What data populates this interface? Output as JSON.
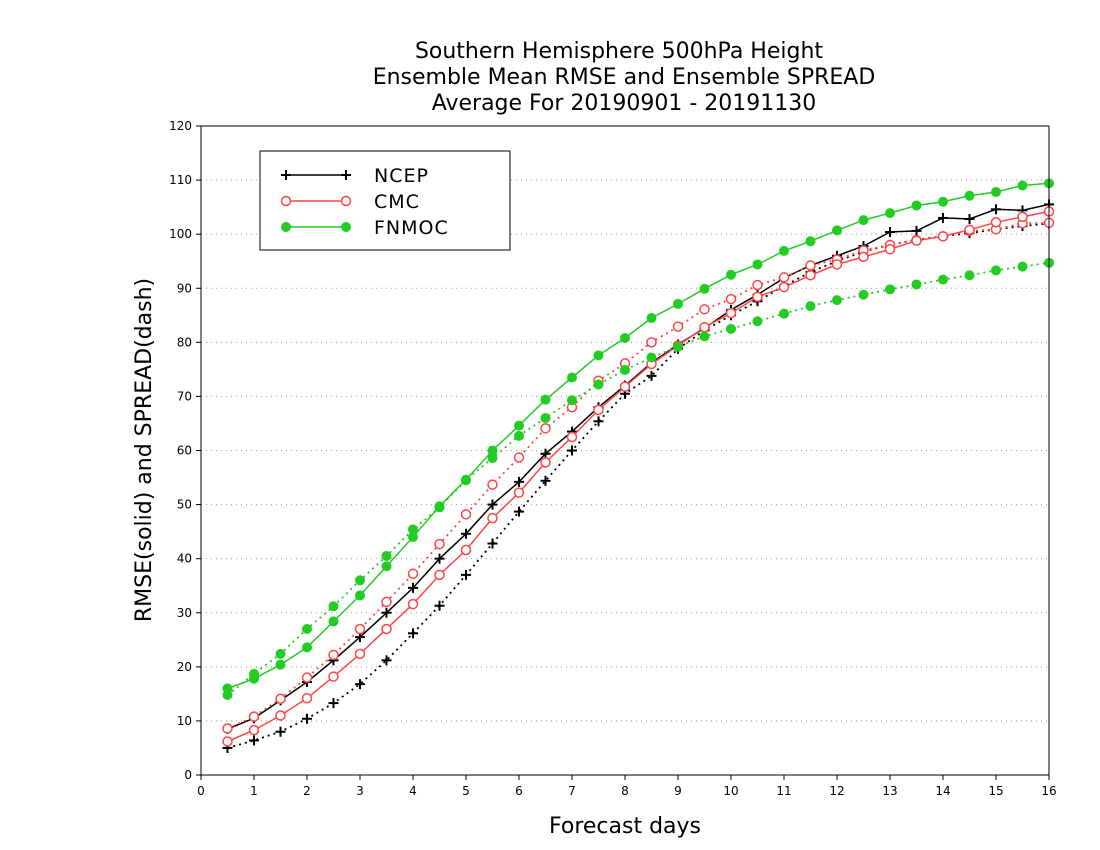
{
  "chart_data": {
    "type": "line",
    "title_lines": [
      "Southern Hemisphere 500hPa Height",
      "Ensemble Mean RMSE and Ensemble SPREAD",
      "Average For 20190901 - 20191130"
    ],
    "xlabel": "Forecast days",
    "ylabel": "RMSE(solid) and SPREAD(dash)",
    "xlim": [
      0,
      16
    ],
    "ylim": [
      0,
      120
    ],
    "xticks": [
      0,
      1,
      2,
      3,
      4,
      5,
      6,
      7,
      8,
      9,
      10,
      11,
      12,
      13,
      14,
      15,
      16
    ],
    "yticks": [
      0,
      10,
      20,
      30,
      40,
      50,
      60,
      70,
      80,
      90,
      100,
      110,
      120
    ],
    "grid": true,
    "legend_position": "top-left",
    "x": [
      0.5,
      1,
      1.5,
      2,
      2.5,
      3,
      3.5,
      4,
      4.5,
      5,
      5.5,
      6,
      6.5,
      7,
      7.5,
      8,
      8.5,
      9,
      9.5,
      10,
      10.5,
      11,
      11.5,
      12,
      12.5,
      13,
      13.5,
      14,
      14.5,
      15,
      15.5,
      16
    ],
    "series": [
      {
        "name": "NCEP",
        "color": "#000000",
        "marker": "plus",
        "rmse": [
          8.5,
          10.5,
          13.8,
          17.2,
          21.2,
          25.5,
          30,
          34.6,
          40,
          44.6,
          50,
          54.2,
          59.4,
          63.5,
          68,
          72,
          76.2,
          79.6,
          82.6,
          86,
          88.8,
          91.9,
          94.2,
          96,
          97.8,
          100.4,
          100.6,
          103,
          102.8,
          104.6,
          104.4,
          105.5
        ],
        "spread": [
          5,
          6.4,
          8,
          10.4,
          13.3,
          16.8,
          21.2,
          26.2,
          31.3,
          37,
          42.8,
          48.7,
          54.4,
          60,
          65.4,
          70.5,
          73.8,
          78.8,
          82.2,
          85,
          87.6,
          90.4,
          93,
          95,
          96.8,
          98,
          99,
          99.6,
          100.2,
          100.9,
          101.5,
          102
        ]
      },
      {
        "name": "CMC",
        "color": "#ff4444",
        "marker": "circle-open",
        "rmse": [
          6.2,
          8.3,
          11,
          14.2,
          18.2,
          22.4,
          27,
          31.6,
          37,
          41.6,
          47.5,
          52.2,
          57.8,
          62.5,
          67.5,
          71.8,
          76,
          79.4,
          82.8,
          85.4,
          88.4,
          90.2,
          92.4,
          94.4,
          95.8,
          97.2,
          98.8,
          99.6,
          100.8,
          102.2,
          103.2,
          104.2
        ],
        "spread": [
          8.6,
          10.8,
          14.1,
          18,
          22.2,
          27,
          32,
          37.2,
          42.7,
          48.2,
          53.7,
          58.7,
          64.1,
          68,
          72.9,
          76.1,
          80,
          82.9,
          86.1,
          88,
          90.6,
          92,
          94.2,
          95.3,
          97,
          98,
          98.9,
          99.6,
          100.6,
          100.9,
          102,
          102.1
        ]
      },
      {
        "name": "FNMOC",
        "color": "#22cc22",
        "marker": "circle-filled",
        "rmse": [
          16,
          17.8,
          20.4,
          23.6,
          28.4,
          33.2,
          38.6,
          44,
          49.7,
          54.6,
          60,
          64.6,
          69.4,
          73.5,
          77.6,
          80.8,
          84.5,
          87.1,
          89.9,
          92.5,
          94.4,
          96.9,
          98.7,
          100.7,
          102.6,
          103.9,
          105.3,
          106,
          107.1,
          107.8,
          109,
          109.4
        ],
        "spread": [
          14.8,
          18.7,
          22.4,
          27,
          31.2,
          36,
          40.5,
          45.4,
          49.5,
          54.5,
          58.6,
          62.7,
          66,
          69.3,
          72.2,
          74.9,
          77.2,
          79.2,
          81.1,
          82.5,
          83.9,
          85.3,
          86.7,
          87.8,
          88.8,
          89.8,
          90.7,
          91.6,
          92.4,
          93.3,
          94,
          94.7
        ]
      }
    ]
  }
}
